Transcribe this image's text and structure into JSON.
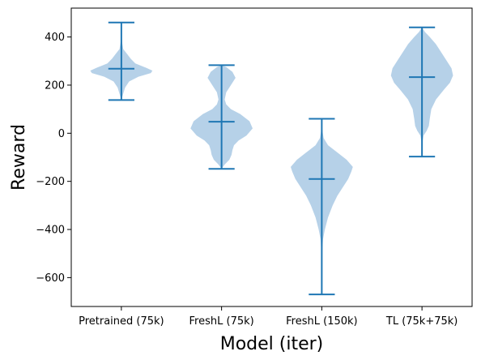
{
  "chart_data": {
    "type": "violin",
    "title": "",
    "xlabel": "Model (iter)",
    "ylabel": "Reward",
    "categories": [
      "Pretrained (75k)",
      "FreshL (75k)",
      "FreshL (150k)",
      "TL (75k+75k)"
    ],
    "ylim": [
      -720,
      520
    ],
    "yticks": [
      -600,
      -400,
      -200,
      0,
      200,
      400
    ],
    "ytick_labels": [
      "−600",
      "−400",
      "−200",
      "0",
      "200",
      "400"
    ],
    "grid": false,
    "colors": {
      "line": "#1f77b4",
      "body": "#a9c9e4"
    },
    "series": [
      {
        "min": 138,
        "max": 460,
        "median": 268,
        "profile": [
          [
            138,
            0.0
          ],
          [
            160,
            0.05
          ],
          [
            190,
            0.12
          ],
          [
            215,
            0.25
          ],
          [
            235,
            0.55
          ],
          [
            250,
            0.95
          ],
          [
            260,
            1.0
          ],
          [
            272,
            0.8
          ],
          [
            290,
            0.45
          ],
          [
            310,
            0.3
          ],
          [
            330,
            0.18
          ],
          [
            350,
            0.06
          ],
          [
            380,
            0.02
          ],
          [
            420,
            0.01
          ],
          [
            460,
            0.0
          ]
        ]
      },
      {
        "min": -148,
        "max": 283,
        "median": 48,
        "profile": [
          [
            -148,
            0.0
          ],
          [
            -130,
            0.1
          ],
          [
            -110,
            0.25
          ],
          [
            -90,
            0.32
          ],
          [
            -70,
            0.35
          ],
          [
            -50,
            0.4
          ],
          [
            -30,
            0.55
          ],
          [
            -10,
            0.8
          ],
          [
            20,
            1.0
          ],
          [
            50,
            0.9
          ],
          [
            80,
            0.6
          ],
          [
            100,
            0.3
          ],
          [
            120,
            0.15
          ],
          [
            140,
            0.1
          ],
          [
            170,
            0.15
          ],
          [
            200,
            0.3
          ],
          [
            230,
            0.45
          ],
          [
            255,
            0.35
          ],
          [
            275,
            0.15
          ],
          [
            283,
            0.0
          ]
        ]
      },
      {
        "min": -670,
        "max": 60,
        "median": -190,
        "profile": [
          [
            -670,
            0.0
          ],
          [
            -500,
            0.01
          ],
          [
            -440,
            0.04
          ],
          [
            -400,
            0.1
          ],
          [
            -350,
            0.2
          ],
          [
            -300,
            0.35
          ],
          [
            -260,
            0.5
          ],
          [
            -220,
            0.7
          ],
          [
            -190,
            0.85
          ],
          [
            -160,
            0.95
          ],
          [
            -140,
            1.0
          ],
          [
            -110,
            0.8
          ],
          [
            -80,
            0.5
          ],
          [
            -50,
            0.2
          ],
          [
            -20,
            0.06
          ],
          [
            10,
            0.02
          ],
          [
            60,
            0.0
          ]
        ]
      },
      {
        "min": -97,
        "max": 440,
        "median": 233,
        "profile": [
          [
            -97,
            0.0
          ],
          [
            -40,
            0.01
          ],
          [
            -10,
            0.05
          ],
          [
            10,
            0.15
          ],
          [
            30,
            0.22
          ],
          [
            60,
            0.25
          ],
          [
            100,
            0.3
          ],
          [
            140,
            0.45
          ],
          [
            180,
            0.7
          ],
          [
            210,
            0.9
          ],
          [
            240,
            1.0
          ],
          [
            270,
            0.95
          ],
          [
            300,
            0.8
          ],
          [
            340,
            0.6
          ],
          [
            370,
            0.45
          ],
          [
            400,
            0.25
          ],
          [
            420,
            0.1
          ],
          [
            440,
            0.0
          ]
        ]
      }
    ]
  }
}
